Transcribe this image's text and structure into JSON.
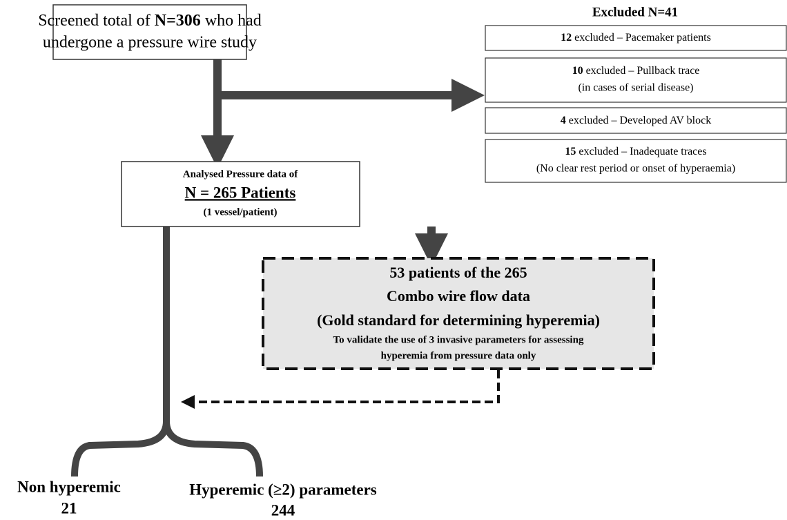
{
  "screened": {
    "line1_prefix": "Screened total of ",
    "line1_bold": "N=306",
    "line1_suffix": " who had",
    "line2": "undergone a pressure wire study"
  },
  "excluded": {
    "title": "Excluded N=41",
    "items": [
      {
        "count": 12,
        "text": " excluded – Pacemaker patients"
      },
      {
        "count": 10,
        "text": " excluded – Pullback trace",
        "note": "(in cases of serial disease)"
      },
      {
        "count": 4,
        "text": " excluded – Developed AV block"
      },
      {
        "count": 15,
        "text": " excluded – Inadequate traces",
        "note": "(No clear rest period or onset of hyperaemia)"
      }
    ]
  },
  "analysed": {
    "line1": "Analysed Pressure data of",
    "line2": "N = 265 Patients",
    "line3": "(1 vessel/patient)"
  },
  "combo": {
    "line1": "53 patients of the 265",
    "line2": "Combo wire flow data",
    "line3": "(Gold standard for determining hyperemia)",
    "line4": "To validate the use of 3 invasive parameters for assessing",
    "line5": "hyperemia from pressure data only"
  },
  "outcomes": [
    {
      "label": "Non hyperemic",
      "count": 21
    },
    {
      "label": "Hyperemic (≥2) parameters",
      "count": 244
    }
  ]
}
